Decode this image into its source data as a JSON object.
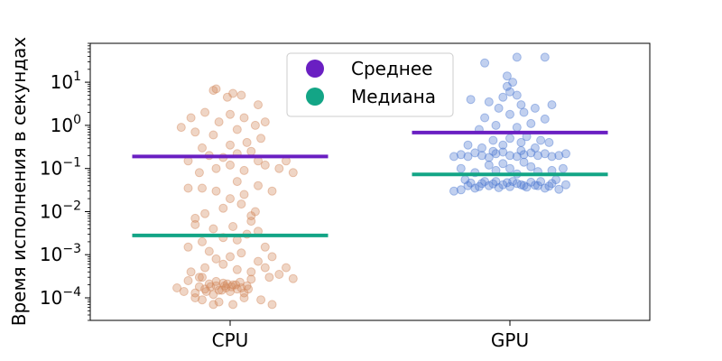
{
  "chart_data": {
    "type": "scatter",
    "subtype": "strip-plot-with-summary-lines",
    "title": "",
    "xlabel": "",
    "ylabel": "Время исполнения в секундах",
    "yscale": "log",
    "ylim": [
      3e-05,
      80
    ],
    "grid": false,
    "legend_position": "top-center",
    "categories": [
      "CPU",
      "GPU"
    ],
    "y_ticks": [
      {
        "value": 0.0001,
        "base": "10",
        "exp": "−4"
      },
      {
        "value": 0.001,
        "base": "10",
        "exp": "−3"
      },
      {
        "value": 0.01,
        "base": "10",
        "exp": "−2"
      },
      {
        "value": 0.1,
        "base": "10",
        "exp": "−1"
      },
      {
        "value": 1,
        "base": "10",
        "exp": "0"
      },
      {
        "value": 10,
        "base": "10",
        "exp": "1"
      }
    ],
    "series": [
      {
        "name": "CPU",
        "color": "#d2885a",
        "mean": 0.19,
        "median": 0.0028,
        "points": [
          {
            "x": -0.38,
            "y": 0.00017
          },
          {
            "x": -0.33,
            "y": 0.00014
          },
          {
            "x": -0.3,
            "y": 0.00025
          },
          {
            "x": -0.25,
            "y": 0.00013
          },
          {
            "x": -0.22,
            "y": 0.00018
          },
          {
            "x": -0.2,
            "y": 0.0003
          },
          {
            "x": -0.18,
            "y": 0.00016
          },
          {
            "x": -0.15,
            "y": 0.00021
          },
          {
            "x": -0.12,
            "y": 0.00012
          },
          {
            "x": -0.1,
            "y": 0.00019
          },
          {
            "x": -0.08,
            "y": 0.00015
          },
          {
            "x": -0.05,
            "y": 0.00022
          },
          {
            "x": -0.03,
            "y": 0.00017
          },
          {
            "x": 0.0,
            "y": 0.00014
          },
          {
            "x": 0.02,
            "y": 0.0002
          },
          {
            "x": 0.05,
            "y": 0.00016
          },
          {
            "x": 0.07,
            "y": 0.00023
          },
          {
            "x": 0.1,
            "y": 0.00013
          },
          {
            "x": 0.12,
            "y": 0.00019
          },
          {
            "x": 0.15,
            "y": 0.00027
          },
          {
            "x": -0.14,
            "y": 0.00018
          },
          {
            "x": -0.06,
            "y": 0.00015
          },
          {
            "x": 0.04,
            "y": 0.0002
          },
          {
            "x": -0.02,
            "y": 0.00021
          },
          {
            "x": 0.08,
            "y": 0.00017
          },
          {
            "x": -0.1,
            "y": 0.00024
          },
          {
            "x": 0.01,
            "y": 0.00018
          },
          {
            "x": -0.17,
            "y": 0.00014
          },
          {
            "x": 0.13,
            "y": 0.00016
          },
          {
            "x": -0.04,
            "y": 0.00019
          },
          {
            "x": -0.2,
            "y": 9e-05
          },
          {
            "x": -0.08,
            "y": 8e-05
          },
          {
            "x": 0.02,
            "y": 7e-05
          },
          {
            "x": -0.12,
            "y": 7e-05
          },
          {
            "x": 0.1,
            "y": 0.0001
          },
          {
            "x": 0.22,
            "y": 9e-05
          },
          {
            "x": 0.3,
            "y": 7e-05
          },
          {
            "x": -0.25,
            "y": 0.0001
          },
          {
            "x": -0.28,
            "y": 0.0004
          },
          {
            "x": -0.18,
            "y": 0.0005
          },
          {
            "x": -0.05,
            "y": 0.0006
          },
          {
            "x": 0.05,
            "y": 0.00045
          },
          {
            "x": 0.15,
            "y": 0.0004
          },
          {
            "x": 0.25,
            "y": 0.0005
          },
          {
            "x": 0.35,
            "y": 0.00035
          },
          {
            "x": -0.1,
            "y": 0.0008
          },
          {
            "x": 0.0,
            "y": 0.0009
          },
          {
            "x": 0.2,
            "y": 0.0007
          },
          {
            "x": -0.22,
            "y": 0.0003
          },
          {
            "x": 0.28,
            "y": 0.0003
          },
          {
            "x": 0.4,
            "y": 0.0005
          },
          {
            "x": 0.45,
            "y": 0.00028
          },
          {
            "x": 0.08,
            "y": 0.0011
          },
          {
            "x": -0.15,
            "y": 0.0012
          },
          {
            "x": -0.2,
            "y": 0.002
          },
          {
            "x": -0.05,
            "y": 0.0025
          },
          {
            "x": 0.05,
            "y": 0.0022
          },
          {
            "x": 0.12,
            "y": 0.003
          },
          {
            "x": 0.2,
            "y": 0.0035
          },
          {
            "x": -0.12,
            "y": 0.004
          },
          {
            "x": 0.02,
            "y": 0.0045
          },
          {
            "x": 0.15,
            "y": 0.006
          },
          {
            "x": -0.25,
            "y": 0.005
          },
          {
            "x": 0.25,
            "y": 0.0015
          },
          {
            "x": 0.3,
            "y": 0.0009
          },
          {
            "x": -0.3,
            "y": 0.0015
          },
          {
            "x": -0.18,
            "y": 0.009
          },
          {
            "x": -0.05,
            "y": 0.012
          },
          {
            "x": 0.08,
            "y": 0.015
          },
          {
            "x": 0.18,
            "y": 0.01
          },
          {
            "x": -0.25,
            "y": 0.007
          },
          {
            "x": 0.0,
            "y": 0.02
          },
          {
            "x": 0.1,
            "y": 0.025
          },
          {
            "x": -0.1,
            "y": 0.03
          },
          {
            "x": 0.2,
            "y": 0.04
          },
          {
            "x": -0.2,
            "y": 0.035
          },
          {
            "x": 0.05,
            "y": 0.05
          },
          {
            "x": 0.3,
            "y": 0.03
          },
          {
            "x": -0.3,
            "y": 0.035
          },
          {
            "x": 0.15,
            "y": 0.008
          },
          {
            "x": -0.22,
            "y": 0.08
          },
          {
            "x": -0.1,
            "y": 0.1
          },
          {
            "x": 0.0,
            "y": 0.12
          },
          {
            "x": 0.1,
            "y": 0.09
          },
          {
            "x": 0.2,
            "y": 0.15
          },
          {
            "x": -0.15,
            "y": 0.2
          },
          {
            "x": 0.05,
            "y": 0.22
          },
          {
            "x": 0.15,
            "y": 0.25
          },
          {
            "x": -0.05,
            "y": 0.18
          },
          {
            "x": 0.25,
            "y": 0.12
          },
          {
            "x": 0.35,
            "y": 0.1
          },
          {
            "x": -0.3,
            "y": 0.15
          },
          {
            "x": -0.2,
            "y": 0.3
          },
          {
            "x": 0.0,
            "y": 0.35
          },
          {
            "x": 0.12,
            "y": 0.4
          },
          {
            "x": 0.22,
            "y": 0.5
          },
          {
            "x": -0.12,
            "y": 0.6
          },
          {
            "x": 0.05,
            "y": 0.8
          },
          {
            "x": -0.25,
            "y": 0.7
          },
          {
            "x": 0.18,
            "y": 1.0
          },
          {
            "x": -0.35,
            "y": 0.9
          },
          {
            "x": -0.08,
            "y": 1.2
          },
          {
            "x": 0.1,
            "y": 1.5
          },
          {
            "x": -0.18,
            "y": 2.0
          },
          {
            "x": 0.0,
            "y": 1.8
          },
          {
            "x": 0.25,
            "y": 1.2
          },
          {
            "x": -0.28,
            "y": 1.5
          },
          {
            "x": -0.12,
            "y": 6.5
          },
          {
            "x": -0.1,
            "y": 7.0
          },
          {
            "x": -0.02,
            "y": 4.5
          },
          {
            "x": 0.02,
            "y": 5.5
          },
          {
            "x": 0.08,
            "y": 5.0
          },
          {
            "x": 0.2,
            "y": 3.0
          },
          {
            "x": 0.4,
            "y": 0.15
          },
          {
            "x": 0.45,
            "y": 0.08
          }
        ]
      },
      {
        "name": "GPU",
        "color": "#4c77d0",
        "mean": 0.68,
        "median": 0.073,
        "points": [
          {
            "x": -0.3,
            "y": 0.04
          },
          {
            "x": -0.25,
            "y": 0.035
          },
          {
            "x": -0.2,
            "y": 0.045
          },
          {
            "x": -0.15,
            "y": 0.04
          },
          {
            "x": -0.1,
            "y": 0.05
          },
          {
            "x": -0.05,
            "y": 0.042
          },
          {
            "x": 0.0,
            "y": 0.038
          },
          {
            "x": 0.05,
            "y": 0.045
          },
          {
            "x": 0.1,
            "y": 0.04
          },
          {
            "x": 0.15,
            "y": 0.048
          },
          {
            "x": 0.2,
            "y": 0.04
          },
          {
            "x": 0.25,
            "y": 0.035
          },
          {
            "x": 0.3,
            "y": 0.045
          },
          {
            "x": -0.18,
            "y": 0.05
          },
          {
            "x": -0.08,
            "y": 0.036
          },
          {
            "x": 0.02,
            "y": 0.05
          },
          {
            "x": 0.12,
            "y": 0.037
          },
          {
            "x": 0.22,
            "y": 0.05
          },
          {
            "x": -0.22,
            "y": 0.038
          },
          {
            "x": 0.08,
            "y": 0.042
          },
          {
            "x": -0.12,
            "y": 0.044
          },
          {
            "x": 0.18,
            "y": 0.041
          },
          {
            "x": -0.02,
            "y": 0.047
          },
          {
            "x": 0.28,
            "y": 0.039
          },
          {
            "x": -0.28,
            "y": 0.046
          },
          {
            "x": -0.35,
            "y": 0.032
          },
          {
            "x": 0.35,
            "y": 0.033
          },
          {
            "x": -0.4,
            "y": 0.03
          },
          {
            "x": 0.4,
            "y": 0.042
          },
          {
            "x": -0.32,
            "y": 0.055
          },
          {
            "x": 0.33,
            "y": 0.055
          },
          {
            "x": -0.25,
            "y": 0.08
          },
          {
            "x": -0.1,
            "y": 0.09
          },
          {
            "x": 0.05,
            "y": 0.075
          },
          {
            "x": 0.2,
            "y": 0.085
          },
          {
            "x": -0.15,
            "y": 0.12
          },
          {
            "x": 0.0,
            "y": 0.1
          },
          {
            "x": 0.15,
            "y": 0.11
          },
          {
            "x": 0.3,
            "y": 0.09
          },
          {
            "x": -0.35,
            "y": 0.1
          },
          {
            "x": 0.38,
            "y": 0.1
          },
          {
            "x": -0.05,
            "y": 0.13
          },
          {
            "x": 0.1,
            "y": 0.14
          },
          {
            "x": -0.3,
            "y": 0.19
          },
          {
            "x": -0.2,
            "y": 0.2
          },
          {
            "x": -0.1,
            "y": 0.22
          },
          {
            "x": 0.0,
            "y": 0.2
          },
          {
            "x": 0.1,
            "y": 0.21
          },
          {
            "x": 0.2,
            "y": 0.2
          },
          {
            "x": 0.3,
            "y": 0.19
          },
          {
            "x": -0.25,
            "y": 0.23
          },
          {
            "x": -0.15,
            "y": 0.18
          },
          {
            "x": -0.05,
            "y": 0.24
          },
          {
            "x": 0.05,
            "y": 0.19
          },
          {
            "x": 0.15,
            "y": 0.23
          },
          {
            "x": 0.25,
            "y": 0.22
          },
          {
            "x": -0.35,
            "y": 0.21
          },
          {
            "x": 0.35,
            "y": 0.2
          },
          {
            "x": -0.4,
            "y": 0.19
          },
          {
            "x": 0.4,
            "y": 0.22
          },
          {
            "x": -0.12,
            "y": 0.25
          },
          {
            "x": 0.08,
            "y": 0.26
          },
          {
            "x": -0.2,
            "y": 0.3
          },
          {
            "x": -0.05,
            "y": 0.35
          },
          {
            "x": 0.08,
            "y": 0.4
          },
          {
            "x": 0.18,
            "y": 0.3
          },
          {
            "x": -0.3,
            "y": 0.35
          },
          {
            "x": 0.28,
            "y": 0.4
          },
          {
            "x": 0.0,
            "y": 0.5
          },
          {
            "x": -0.12,
            "y": 0.45
          },
          {
            "x": 0.12,
            "y": 0.55
          },
          {
            "x": 0.22,
            "y": 0.45
          },
          {
            "x": -0.22,
            "y": 0.8
          },
          {
            "x": -0.1,
            "y": 1.0
          },
          {
            "x": 0.05,
            "y": 0.9
          },
          {
            "x": 0.15,
            "y": 1.1
          },
          {
            "x": -0.18,
            "y": 1.5
          },
          {
            "x": 0.0,
            "y": 1.8
          },
          {
            "x": 0.1,
            "y": 2.0
          },
          {
            "x": 0.25,
            "y": 1.4
          },
          {
            "x": -0.08,
            "y": 2.5
          },
          {
            "x": 0.18,
            "y": 2.5
          },
          {
            "x": -0.15,
            "y": 3.5
          },
          {
            "x": 0.08,
            "y": 3.0
          },
          {
            "x": -0.05,
            "y": 4.5
          },
          {
            "x": 0.05,
            "y": 5.0
          },
          {
            "x": 0.0,
            "y": 6.0
          },
          {
            "x": -0.28,
            "y": 4.0
          },
          {
            "x": 0.3,
            "y": 3.0
          },
          {
            "x": -0.02,
            "y": 8.0
          },
          {
            "x": 0.02,
            "y": 10.0
          },
          {
            "x": -0.02,
            "y": 14.0
          },
          {
            "x": -0.18,
            "y": 28.0
          },
          {
            "x": 0.05,
            "y": 38.0
          },
          {
            "x": 0.25,
            "y": 38.0
          }
        ]
      }
    ],
    "summary_lines": [
      {
        "name": "Среднее",
        "color": "#6a1fc2"
      },
      {
        "name": "Медиана",
        "color": "#13a586"
      }
    ]
  }
}
